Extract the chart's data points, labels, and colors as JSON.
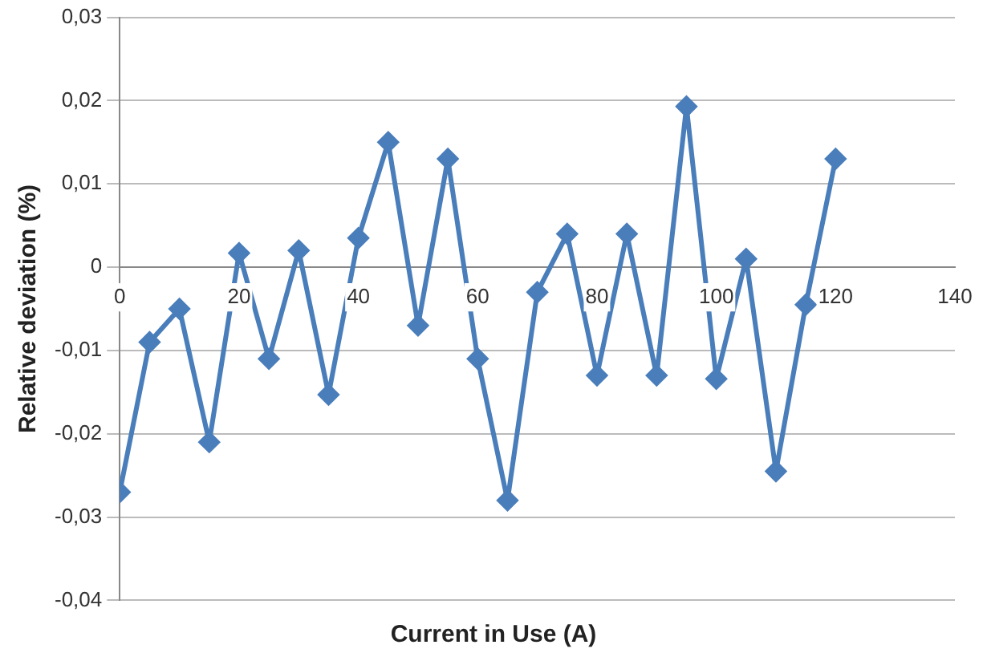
{
  "chart_data": {
    "type": "line",
    "xlabel": "Current in Use (A)",
    "ylabel": "Relative deviation (%)",
    "x": [
      0,
      5,
      10,
      15,
      20,
      25,
      30,
      35,
      40,
      45,
      50,
      55,
      60,
      65,
      70,
      75,
      80,
      85,
      90,
      95,
      100,
      105,
      110,
      115,
      120
    ],
    "series": [
      {
        "color": "#4a7ebb",
        "values": [
          -0.027,
          -0.009,
          -0.005,
          -0.021,
          0.0017,
          -0.011,
          0.002,
          -0.0153,
          0.0035,
          0.015,
          -0.007,
          0.013,
          -0.011,
          -0.028,
          -0.003,
          0.004,
          -0.013,
          0.004,
          -0.013,
          0.0193,
          -0.0134,
          0.001,
          -0.0245,
          -0.0045,
          0.013
        ]
      }
    ],
    "xlim": [
      0,
      140
    ],
    "xticks": [
      0,
      20,
      40,
      60,
      80,
      100,
      120,
      140
    ],
    "ylim": [
      -0.04,
      0.03
    ],
    "yticks": [
      {
        "value": -0.04,
        "label": "-0,04"
      },
      {
        "value": -0.03,
        "label": "-0,03"
      },
      {
        "value": -0.02,
        "label": "-0,02"
      },
      {
        "value": -0.01,
        "label": "-0,01"
      },
      0,
      {
        "value": 0.01,
        "label": "0,01"
      },
      {
        "value": 0.02,
        "label": "0,02"
      },
      {
        "value": 0.03,
        "label": "0,03"
      }
    ],
    "grid": "y",
    "legend": false,
    "marker": "diamond",
    "line_style": "solid"
  }
}
